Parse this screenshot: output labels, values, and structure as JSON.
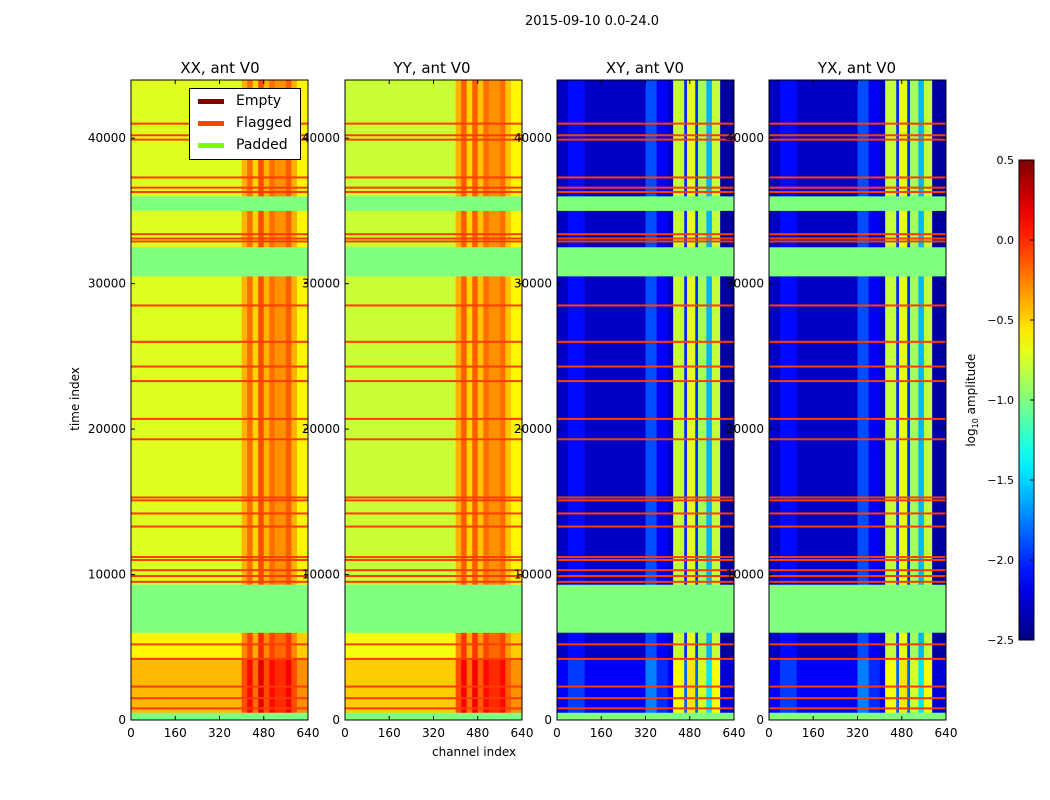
{
  "chart_data": {
    "type": "heatmap",
    "title": "2015-09-10 0.0-24.0",
    "xlabel": "channel index",
    "ylabel": "time index",
    "xlim": [
      0,
      640
    ],
    "ylim": [
      0,
      44000
    ],
    "xticks": [
      "0",
      "160",
      "320",
      "480",
      "640"
    ],
    "xtick_values": [
      0,
      160,
      320,
      480,
      640
    ],
    "yticks": [
      "0",
      "10000",
      "20000",
      "30000",
      "40000"
    ],
    "ytick_values": [
      0,
      10000,
      20000,
      30000,
      40000
    ],
    "colorbar": {
      "label": "log10 amplitude",
      "label_main": "log",
      "label_sub": "10",
      "label_rest": " amplitude",
      "range": [
        -2.5,
        0.5
      ],
      "ticks": [
        "0.5",
        "0.0",
        "−0.5",
        "−1.0",
        "−1.5",
        "−2.0",
        "−2.5"
      ],
      "tick_values": [
        0.5,
        0.0,
        -0.5,
        -1.0,
        -1.5,
        -2.0,
        -2.5
      ],
      "colormap": "jet"
    },
    "legend": {
      "placement": "upper-center of first panel",
      "entries": [
        {
          "label": "Empty",
          "color": "#800000"
        },
        {
          "label": "Flagged",
          "color": "#ff4500"
        },
        {
          "label": "Padded",
          "color": "#7cfc00"
        }
      ]
    },
    "padded_color": "#80ff80",
    "flagged_color": "#ff3c00",
    "padded_time_ranges": [
      [
        0,
        500
      ],
      [
        6000,
        9300
      ],
      [
        30500,
        32500
      ],
      [
        35000,
        36000
      ]
    ],
    "flagged_times": [
      41000,
      40200,
      39900,
      37300,
      36600,
      36300,
      33400,
      33100,
      32900,
      28500,
      26000,
      24300,
      23300,
      20700,
      19300,
      15300,
      15100,
      14200,
      13300,
      11200,
      11000,
      10300,
      9900,
      9500,
      5200,
      4200,
      2300,
      1500,
      800
    ],
    "panels": [
      {
        "title": "XX, ant V0",
        "channel_profile": [
          [
            0,
            400,
            -0.72
          ],
          [
            400,
            420,
            -0.4
          ],
          [
            420,
            440,
            -0.2
          ],
          [
            440,
            460,
            -0.5
          ],
          [
            460,
            480,
            -0.1
          ],
          [
            480,
            500,
            -0.4
          ],
          [
            500,
            520,
            -0.2
          ],
          [
            520,
            560,
            -0.3
          ],
          [
            560,
            580,
            -0.15
          ],
          [
            580,
            600,
            -0.4
          ],
          [
            600,
            640,
            -0.6
          ]
        ],
        "time_offsets": [
          [
            0,
            4200,
            0.3
          ],
          [
            4200,
            6000,
            0.12
          ],
          [
            6000,
            44000,
            0
          ]
        ]
      },
      {
        "title": "YY, ant V0",
        "channel_profile": [
          [
            0,
            400,
            -0.78
          ],
          [
            400,
            420,
            -0.4
          ],
          [
            420,
            440,
            -0.15
          ],
          [
            440,
            460,
            -0.5
          ],
          [
            460,
            480,
            -0.15
          ],
          [
            480,
            500,
            -0.45
          ],
          [
            500,
            520,
            -0.2
          ],
          [
            520,
            560,
            -0.3
          ],
          [
            560,
            580,
            -0.2
          ],
          [
            580,
            600,
            -0.45
          ],
          [
            600,
            640,
            -0.6
          ]
        ],
        "time_offsets": [
          [
            0,
            4200,
            0.3
          ],
          [
            4200,
            6000,
            0.12
          ],
          [
            6000,
            44000,
            0
          ]
        ]
      },
      {
        "title": "XY, ant V0",
        "channel_profile": [
          [
            0,
            40,
            -2.3
          ],
          [
            40,
            100,
            -2.1
          ],
          [
            100,
            320,
            -2.3
          ],
          [
            320,
            360,
            -1.9
          ],
          [
            360,
            400,
            -2.15
          ],
          [
            400,
            420,
            -2.3
          ],
          [
            420,
            460,
            -0.8
          ],
          [
            460,
            470,
            -2.0
          ],
          [
            470,
            500,
            -0.7
          ],
          [
            500,
            510,
            -2.0
          ],
          [
            510,
            540,
            -0.9
          ],
          [
            540,
            560,
            -1.6
          ],
          [
            560,
            590,
            -0.8
          ],
          [
            590,
            640,
            -2.4
          ]
        ],
        "time_offsets": [
          [
            0,
            4200,
            0.15
          ],
          [
            4200,
            44000,
            0
          ]
        ]
      },
      {
        "title": "YX, ant V0",
        "channel_profile": [
          [
            0,
            40,
            -2.3
          ],
          [
            40,
            100,
            -2.1
          ],
          [
            100,
            320,
            -2.3
          ],
          [
            320,
            360,
            -1.9
          ],
          [
            360,
            400,
            -2.15
          ],
          [
            400,
            420,
            -2.3
          ],
          [
            420,
            460,
            -0.8
          ],
          [
            460,
            470,
            -2.0
          ],
          [
            470,
            500,
            -0.7
          ],
          [
            500,
            510,
            -2.0
          ],
          [
            510,
            540,
            -0.9
          ],
          [
            540,
            560,
            -1.6
          ],
          [
            560,
            590,
            -0.8
          ],
          [
            590,
            640,
            -2.4
          ]
        ],
        "time_offsets": [
          [
            0,
            4200,
            0.15
          ],
          [
            4200,
            44000,
            0
          ]
        ]
      }
    ]
  }
}
